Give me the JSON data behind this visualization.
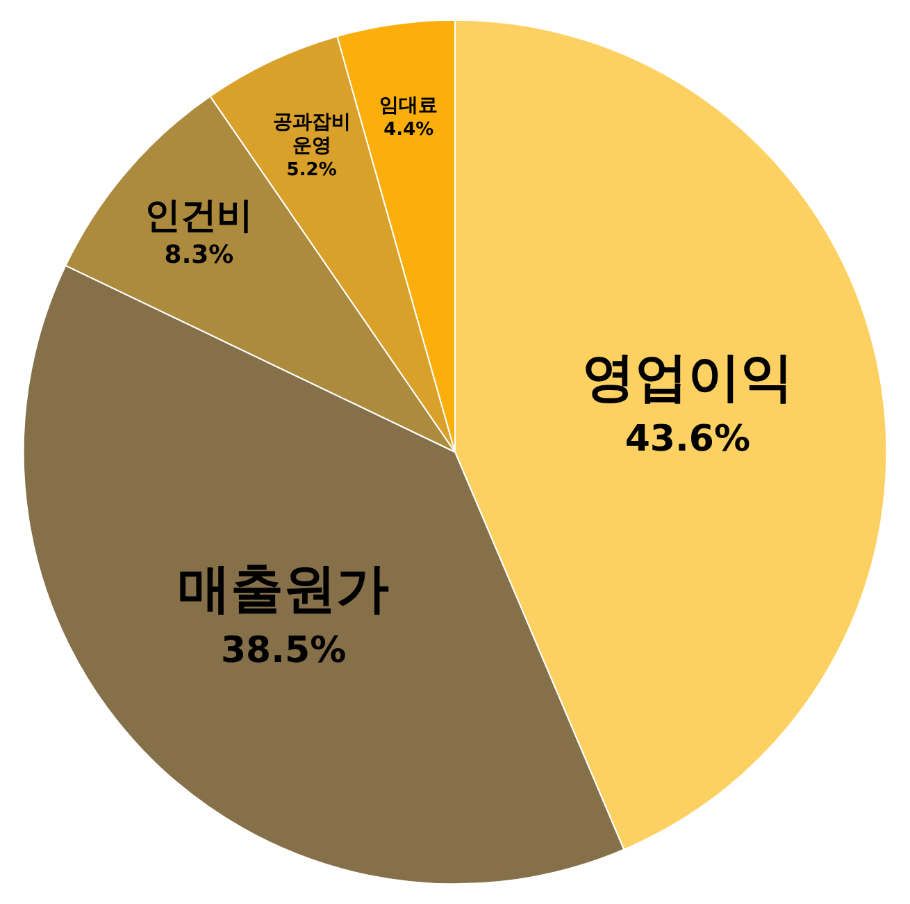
{
  "chart_data": {
    "type": "pie",
    "categories": [
      "영업이익",
      "매출원가",
      "인건비",
      "공과잡비\n운영",
      "임대료"
    ],
    "values": [
      43.6,
      38.5,
      8.3,
      5.2,
      4.4
    ],
    "value_labels": [
      "43.6%",
      "38.5%",
      "8.3%",
      "5.2%",
      "4.4%"
    ],
    "colors": [
      "#fdd161",
      "#857049",
      "#ad8b3e",
      "#d9a02a",
      "#fcaf0a"
    ],
    "legend": false
  }
}
